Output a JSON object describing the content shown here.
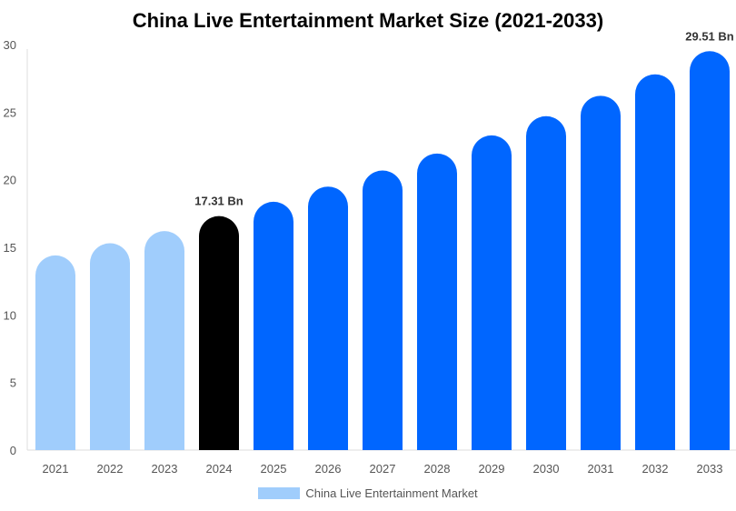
{
  "chart_data": {
    "type": "bar",
    "title": "China Live Entertainment Market Size (2021-2033)",
    "categories": [
      "2021",
      "2022",
      "2023",
      "2024",
      "2025",
      "2026",
      "2027",
      "2028",
      "2029",
      "2030",
      "2031",
      "2032",
      "2033"
    ],
    "series": [
      {
        "name": "China Live Entertainment Market",
        "values": [
          14.4,
          15.3,
          16.2,
          17.31,
          18.37,
          19.49,
          20.68,
          21.94,
          23.28,
          24.7,
          26.21,
          27.8,
          29.51
        ]
      }
    ],
    "data_labels": {
      "2024": "17.31 Bn",
      "2033": "29.51 Bn"
    },
    "ylim": [
      0,
      30
    ],
    "yticks": [
      0,
      5,
      10,
      15,
      20,
      25,
      30
    ],
    "xlabel": "",
    "ylabel": "",
    "grid": false,
    "legend": "bottom",
    "colors": {
      "historical": "#a0cdfc",
      "current": "#000000",
      "forecast": "#0066ff"
    }
  }
}
